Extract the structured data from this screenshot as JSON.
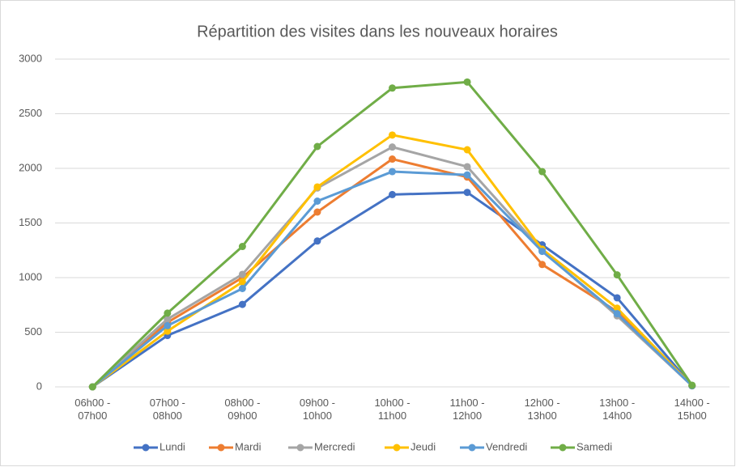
{
  "chart_data": {
    "type": "line",
    "title": "Répartition des visites dans les nouveaux horaires",
    "categories": [
      "06h00 - 07h00",
      "07h00 - 08h00",
      "08h00 - 09h00",
      "09h00 - 10h00",
      "10h00 - 11h00",
      "11h00 - 12h00",
      "12h00 - 13h00",
      "13h00 - 14h00",
      "14h00 - 15h00"
    ],
    "series": [
      {
        "name": "Lundi",
        "color": "#4472c4",
        "values": [
          0,
          470,
          755,
          1335,
          1760,
          1780,
          1300,
          815,
          10
        ]
      },
      {
        "name": "Mardi",
        "color": "#ed7d31",
        "values": [
          0,
          590,
          1000,
          1600,
          2085,
          1920,
          1120,
          690,
          10
        ]
      },
      {
        "name": "Mercredi",
        "color": "#a5a5a5",
        "values": [
          0,
          620,
          1030,
          1820,
          2195,
          2015,
          1250,
          650,
          10
        ]
      },
      {
        "name": "Jeudi",
        "color": "#ffc000",
        "values": [
          0,
          510,
          960,
          1830,
          2305,
          2170,
          1260,
          720,
          10
        ]
      },
      {
        "name": "Vendredi",
        "color": "#5b9bd5",
        "values": [
          0,
          560,
          900,
          1700,
          1970,
          1940,
          1240,
          670,
          10
        ]
      },
      {
        "name": "Samedi",
        "color": "#70ad47",
        "values": [
          0,
          675,
          1285,
          2200,
          2735,
          2790,
          1970,
          1025,
          15
        ]
      }
    ],
    "ylim": [
      0,
      3000
    ],
    "yticks": [
      0,
      500,
      1000,
      1500,
      2000,
      2500,
      3000
    ],
    "grid": true,
    "legend": "bottom"
  }
}
